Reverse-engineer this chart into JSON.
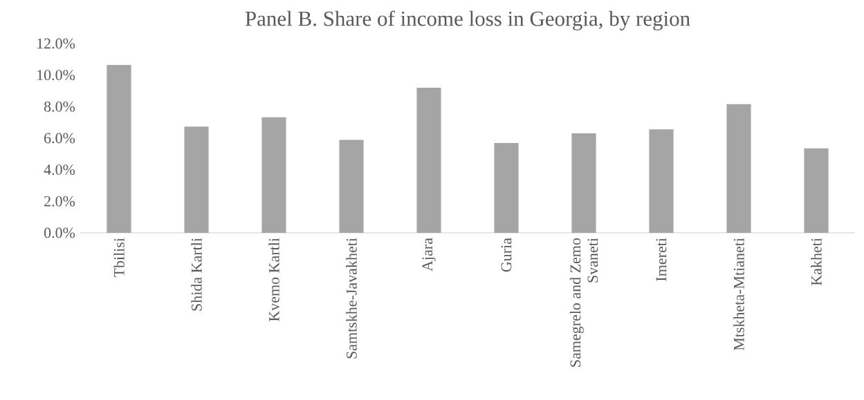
{
  "chart_data": {
    "type": "bar",
    "title": "Panel B. Share of income loss in Georgia, by region",
    "categories": [
      "Tbilisi",
      "Shida Kartli",
      "Kvemo Kartli",
      "Samtskhe-Javakheti",
      "Ajara",
      "Guria",
      "Samegrelo and Zemo Svaneti",
      "Imereti",
      "Mtskheta-Mtianeti",
      "Kakheti"
    ],
    "values": [
      10.64,
      6.73,
      7.33,
      5.89,
      9.2,
      5.69,
      6.31,
      6.56,
      8.16,
      5.35
    ],
    "color": "#a5a5a5",
    "ylim": [
      0,
      12
    ],
    "yticks": [
      {
        "value": 0,
        "label": "0.0%"
      },
      {
        "value": 2,
        "label": "2.0%"
      },
      {
        "value": 4,
        "label": "4.0%"
      },
      {
        "value": 6,
        "label": "6.0%"
      },
      {
        "value": 8,
        "label": "8.0%"
      },
      {
        "value": 10,
        "label": "10.0%"
      },
      {
        "value": 12,
        "label": "12.0%"
      }
    ],
    "grid": false
  }
}
